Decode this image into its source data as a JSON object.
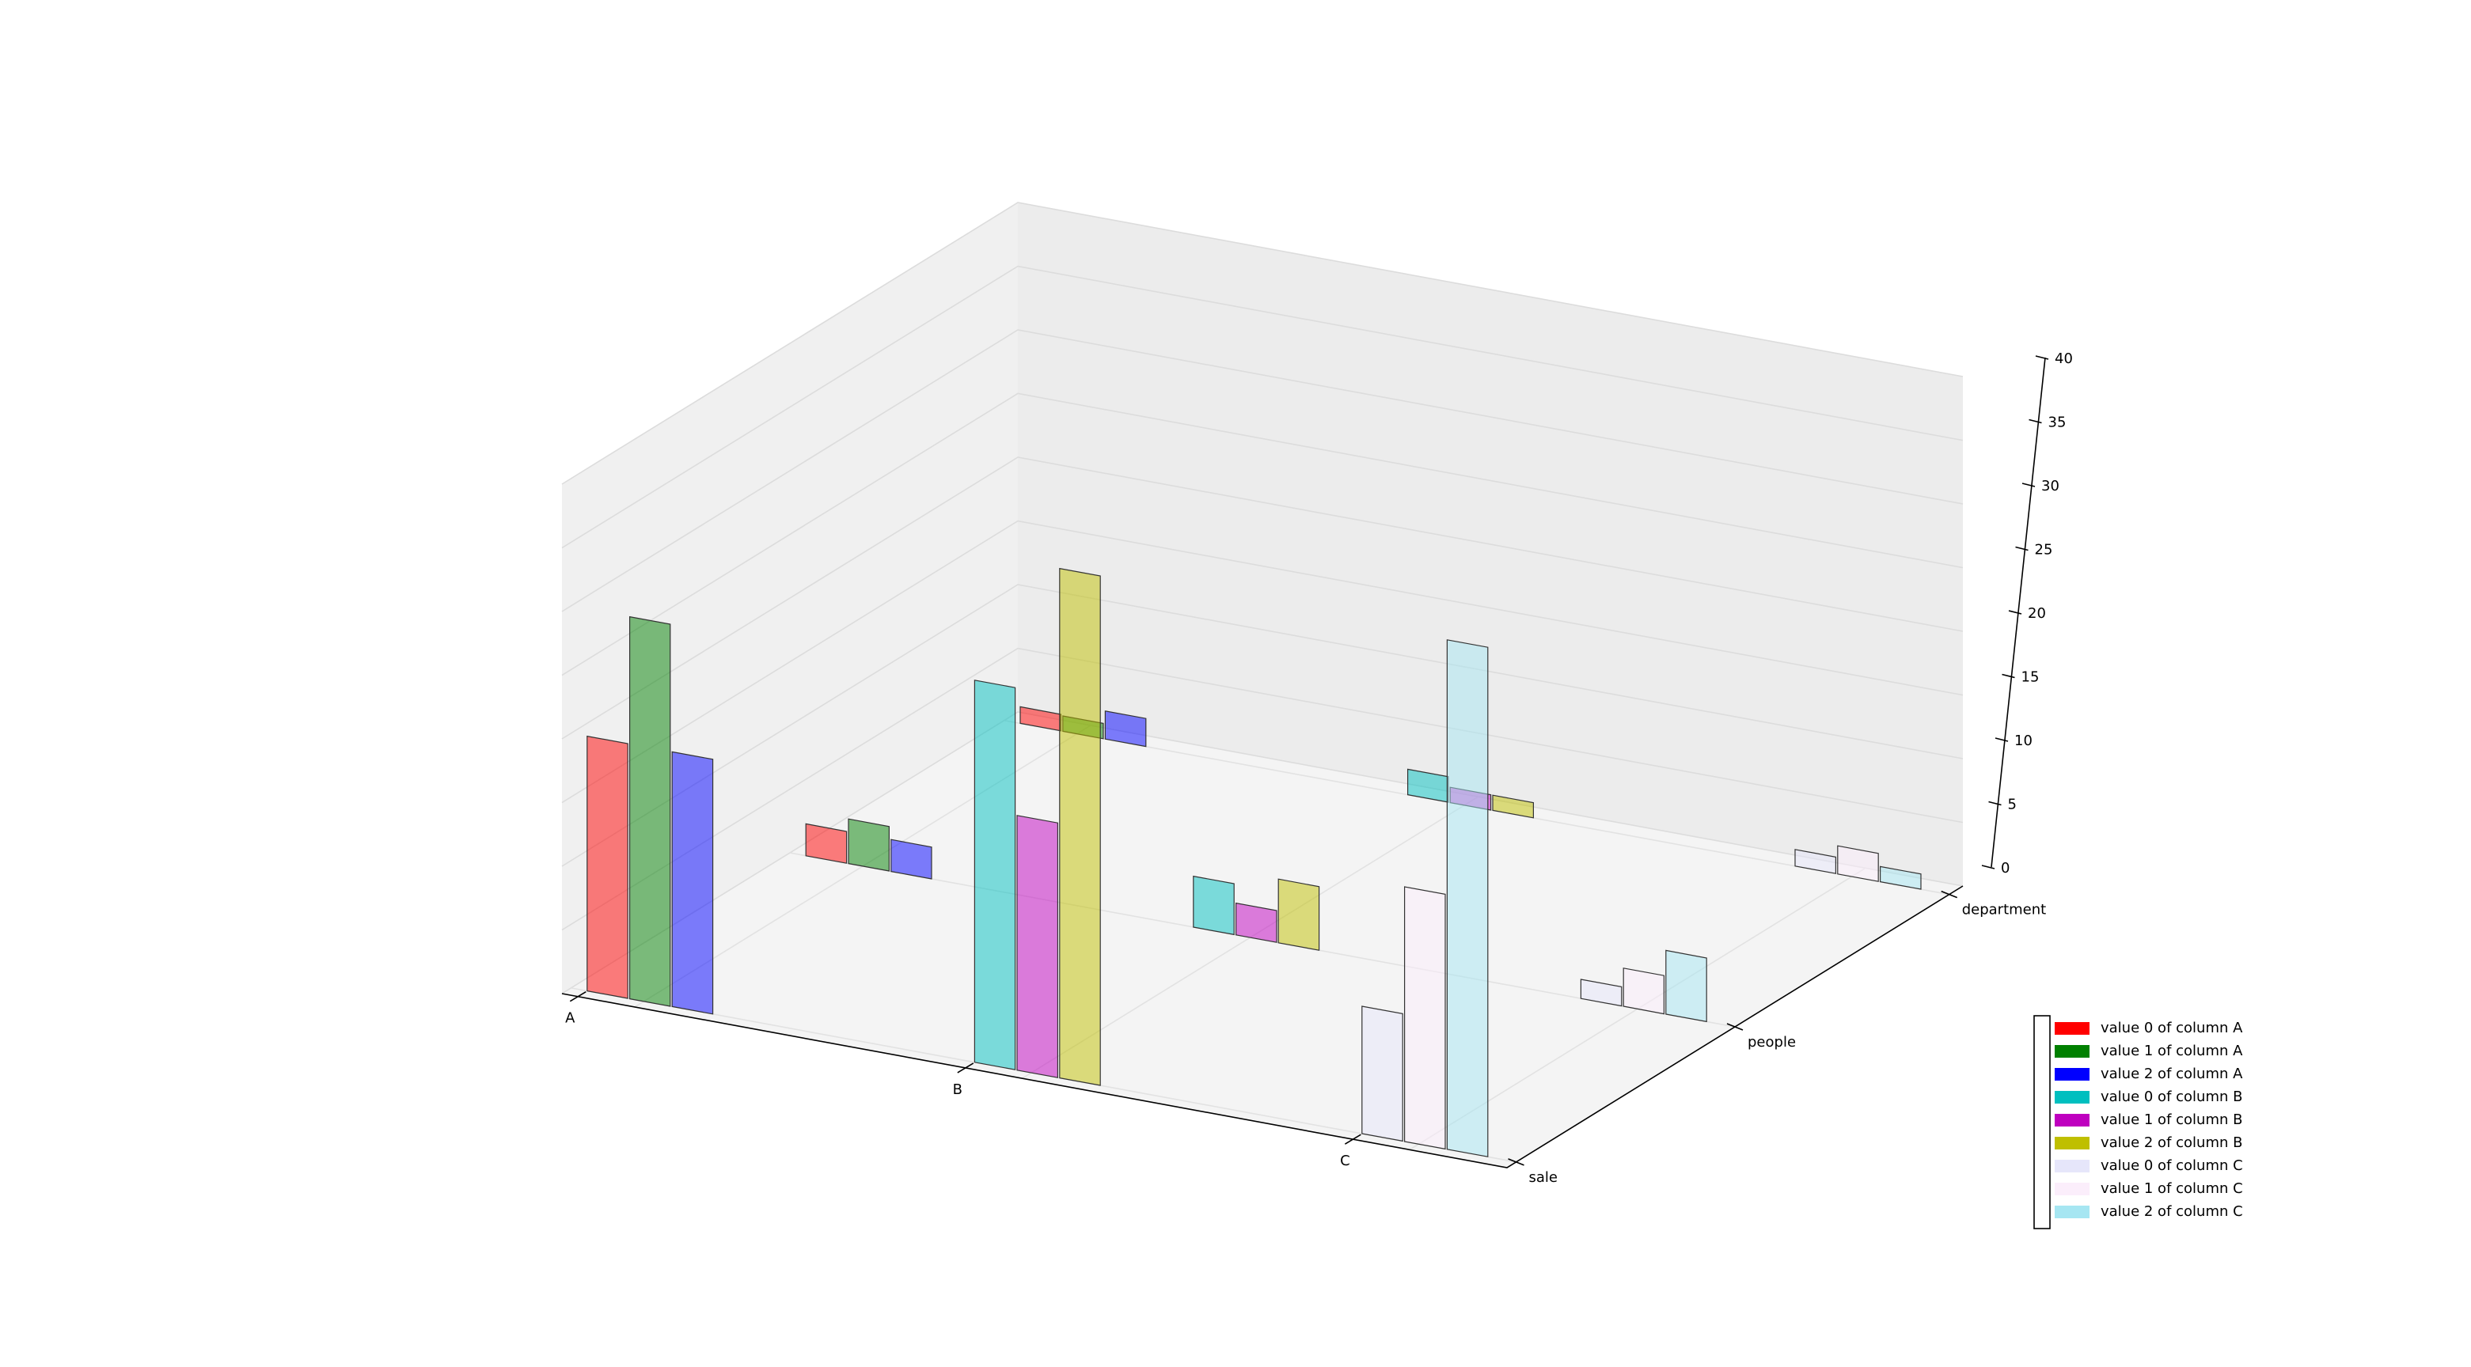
{
  "chart_data": {
    "type": "bar3d",
    "categories": [
      "A",
      "B",
      "C"
    ],
    "rows": [
      "sale",
      "people",
      "department"
    ],
    "series": [
      {
        "name": "value 0 of column A",
        "color": "#ff0000",
        "values": [
          20,
          2.5,
          1.3
        ]
      },
      {
        "name": "value 1 of column A",
        "color": "#008000",
        "values": [
          30,
          3.5,
          1.2
        ]
      },
      {
        "name": "value 2 of column A",
        "color": "#0000ff",
        "values": [
          20,
          2.5,
          2.2
        ]
      },
      {
        "name": "value 0 of column B",
        "color": "#00bfbf",
        "values": [
          30,
          4,
          2
        ]
      },
      {
        "name": "value 1 of column B",
        "color": "#bf00bf",
        "values": [
          20,
          2.5,
          1.2
        ]
      },
      {
        "name": "value 2 of column B",
        "color": "#bfbf00",
        "values": [
          40,
          5,
          1.2
        ]
      },
      {
        "name": "value 0 of column C",
        "color": "#e6e6fa",
        "values": [
          10,
          1.5,
          1.3
        ]
      },
      {
        "name": "value 1 of column C",
        "color": "#fbeefb",
        "values": [
          20,
          3,
          2.2
        ]
      },
      {
        "name": "value 2 of column C",
        "color": "#a6e6f2",
        "values": [
          40,
          5,
          1.2
        ]
      }
    ],
    "zlim": [
      0,
      40
    ],
    "zticks": [
      0,
      5,
      10,
      15,
      20,
      25,
      30,
      35,
      40
    ],
    "grid": true
  }
}
